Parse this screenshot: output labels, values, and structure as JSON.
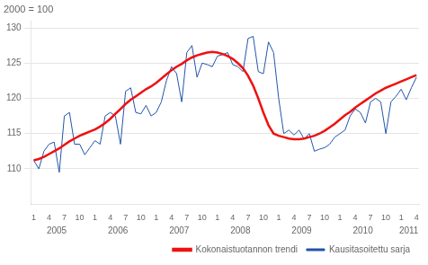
{
  "chart_data": {
    "type": "line",
    "ylabel": "2000 = 100",
    "categories": [
      "1",
      null,
      null,
      "4",
      null,
      null,
      "7",
      null,
      null,
      "10",
      null,
      null,
      "1",
      null,
      null,
      "4",
      null,
      null,
      "7",
      null,
      null,
      "10",
      null,
      null,
      "1",
      null,
      null,
      "4",
      null,
      null,
      "7",
      null,
      null,
      "10",
      null,
      null,
      "1",
      null,
      null,
      "4",
      null,
      null,
      "7",
      null,
      null,
      "10",
      null,
      null,
      "1",
      null,
      null,
      "4",
      null,
      null,
      "7",
      null,
      null,
      "10",
      null,
      null,
      "1",
      null,
      null,
      "4",
      null,
      null,
      "7",
      null,
      null,
      "10",
      null,
      null,
      "1",
      null,
      null,
      "4"
    ],
    "annotations": [
      "2005",
      "2006",
      "2007",
      "2008",
      "2009",
      "2010",
      "2011"
    ],
    "series": [
      {
        "name": "Kokonaistuotannon trendi",
        "color": "#EE1111",
        "values": [
          111.2,
          111.4,
          111.7,
          112.1,
          112.5,
          112.9,
          113.4,
          113.9,
          114.3,
          114.7,
          115.0,
          115.3,
          115.6,
          116.0,
          116.5,
          117.1,
          117.8,
          118.5,
          119.2,
          119.8,
          120.3,
          120.8,
          121.3,
          121.7,
          122.2,
          122.8,
          123.4,
          124.0,
          124.5,
          124.9,
          125.4,
          125.8,
          126.1,
          126.3,
          126.5,
          126.6,
          126.5,
          126.3,
          126.0,
          125.6,
          125.0,
          124.3,
          123.2,
          121.8,
          120.0,
          118.0,
          116.2,
          115.0,
          114.7,
          114.5,
          114.3,
          114.2,
          114.2,
          114.3,
          114.5,
          114.7,
          115.0,
          115.4,
          115.9,
          116.4,
          117.0,
          117.6,
          118.1,
          118.7,
          119.2,
          119.7,
          120.2,
          120.7,
          121.1,
          121.5,
          121.8,
          122.1,
          122.4,
          122.7,
          123.0,
          123.3
        ]
      },
      {
        "name": "Kausitasoitettu sarja",
        "color": "#2255AA",
        "values": [
          111.2,
          110.0,
          112.5,
          113.5,
          113.8,
          109.5,
          117.5,
          118.0,
          113.5,
          113.5,
          112.0,
          113.0,
          114.0,
          113.5,
          117.5,
          118.0,
          117.5,
          113.5,
          121.0,
          121.5,
          118.0,
          117.8,
          119.0,
          117.5,
          118.0,
          119.5,
          122.5,
          124.5,
          123.5,
          119.5,
          126.5,
          127.5,
          123.0,
          125.0,
          124.8,
          124.5,
          126.0,
          126.2,
          126.5,
          124.8,
          124.5,
          123.8,
          128.5,
          128.8,
          123.8,
          123.5,
          128.0,
          126.5,
          120.0,
          115.0,
          115.5,
          114.8,
          115.5,
          114.2,
          115.0,
          112.5,
          112.8,
          113.0,
          113.5,
          114.5,
          115.0,
          115.5,
          117.5,
          118.5,
          118.0,
          116.5,
          119.5,
          120.0,
          119.5,
          115.0,
          119.5,
          120.3,
          121.3,
          119.8,
          121.5,
          123.0
        ]
      }
    ],
    "ylim": [
      105,
      131
    ],
    "yticks": [
      110,
      115,
      120,
      125,
      130
    ],
    "grid": true,
    "legend": "lower right"
  }
}
